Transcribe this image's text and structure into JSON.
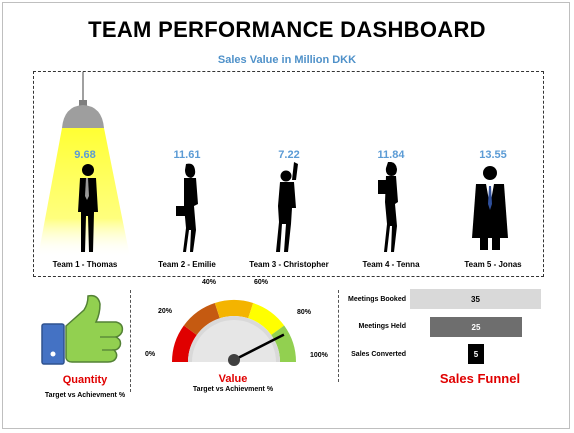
{
  "title": "TEAM PERFORMANCE DASHBOARD",
  "subtitle": "Sales Value in Million DKK",
  "teams": [
    {
      "value": "9.68",
      "label": "Team 1 - Thomas"
    },
    {
      "value": "11.61",
      "label": "Team 2 - Emilie"
    },
    {
      "value": "7.22",
      "label": "Team 3 - Christopher"
    },
    {
      "value": "11.84",
      "label": "Team 4 - Tenna"
    },
    {
      "value": "13.55",
      "label": "Team 5 - Jonas"
    }
  ],
  "quantity": {
    "label": "Quantity",
    "sub": "Target vs Achievment %"
  },
  "value_gauge": {
    "label": "Value",
    "sub": "Target vs Achievment %",
    "ticks": [
      "0%",
      "20%",
      "40%",
      "60%",
      "80%",
      "100%"
    ],
    "needle_percent": 85
  },
  "funnel": {
    "title": "Sales Funnel",
    "rows": [
      {
        "label": "Meetings Booked",
        "value": "35"
      },
      {
        "label": "Meetings Held",
        "value": "25"
      },
      {
        "label": "Sales Converted",
        "value": "5"
      }
    ]
  },
  "colors": {
    "accent_red": "#e00000",
    "value_blue": "#5b9bd5",
    "subtitle_blue": "#4f91c9",
    "lamp_yellow": "#ffff33"
  },
  "icons": [
    "ceiling-lamp-icon",
    "thumbs-up-icon",
    "gauge-icon",
    "businessperson-silhouette-icon"
  ]
}
